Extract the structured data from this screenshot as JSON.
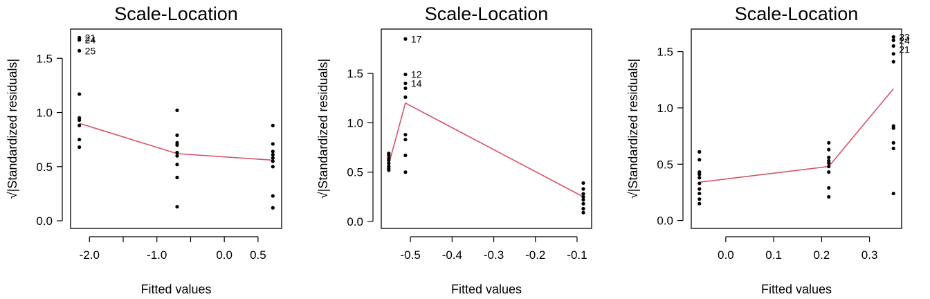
{
  "chart_data": [
    {
      "type": "scatter",
      "title": "Scale-Location",
      "xlabel": "Fitted values",
      "ylabel": "√|Standardized residuals|",
      "xlim": [
        -2.28,
        0.85
      ],
      "ylim": [
        -0.07,
        1.77
      ],
      "xticks": [
        -2.0,
        -1.5,
        -1.0,
        -0.5,
        0.0,
        0.5
      ],
      "xtick_labels": [
        "-2.0",
        "",
        "-1.0",
        "",
        "0.0",
        "0.5"
      ],
      "yticks": [
        0.0,
        0.5,
        1.0,
        1.5
      ],
      "ytick_labels": [
        "0.0",
        "0.5",
        "1.0",
        "1.5"
      ],
      "points": [
        {
          "x": -2.15,
          "y": 1.69
        },
        {
          "x": -2.15,
          "y": 1.67
        },
        {
          "x": -2.15,
          "y": 1.57
        },
        {
          "x": -2.15,
          "y": 1.17
        },
        {
          "x": -2.15,
          "y": 0.95
        },
        {
          "x": -2.15,
          "y": 0.93
        },
        {
          "x": -2.15,
          "y": 0.88
        },
        {
          "x": -2.15,
          "y": 0.75
        },
        {
          "x": -2.15,
          "y": 0.68
        },
        {
          "x": -0.7,
          "y": 1.02
        },
        {
          "x": -0.7,
          "y": 0.79
        },
        {
          "x": -0.7,
          "y": 0.72
        },
        {
          "x": -0.7,
          "y": 0.7
        },
        {
          "x": -0.7,
          "y": 0.63
        },
        {
          "x": -0.7,
          "y": 0.6
        },
        {
          "x": -0.7,
          "y": 0.52
        },
        {
          "x": -0.7,
          "y": 0.4
        },
        {
          "x": -0.7,
          "y": 0.13
        },
        {
          "x": 0.72,
          "y": 0.88
        },
        {
          "x": 0.72,
          "y": 0.71
        },
        {
          "x": 0.72,
          "y": 0.64
        },
        {
          "x": 0.72,
          "y": 0.61
        },
        {
          "x": 0.72,
          "y": 0.58
        },
        {
          "x": 0.72,
          "y": 0.55
        },
        {
          "x": 0.72,
          "y": 0.5
        },
        {
          "x": 0.72,
          "y": 0.23
        },
        {
          "x": 0.72,
          "y": 0.12
        }
      ],
      "labels": [
        {
          "text": "21",
          "x": -2.15,
          "y": 1.69
        },
        {
          "text": "24",
          "x": -2.15,
          "y": 1.67
        },
        {
          "text": "25",
          "x": -2.15,
          "y": 1.57
        }
      ],
      "smooth": {
        "x": [
          -2.15,
          -0.7,
          0.72
        ],
        "y": [
          0.9,
          0.62,
          0.56
        ]
      },
      "smooth_color": "#d6526a"
    },
    {
      "type": "scatter",
      "title": "Scale-Location",
      "xlabel": "Fitted values",
      "ylabel": "√|Standardized residuals|",
      "xlim": [
        -0.57,
        -0.065
      ],
      "ylim": [
        -0.07,
        1.95
      ],
      "xticks": [
        -0.5,
        -0.4,
        -0.3,
        -0.2,
        -0.1
      ],
      "xtick_labels": [
        "-0.5",
        "-0.4",
        "-0.3",
        "-0.2",
        "-0.1"
      ],
      "yticks": [
        0.0,
        0.5,
        1.0,
        1.5
      ],
      "ytick_labels": [
        "0.0",
        "0.5",
        "1.0",
        "1.5"
      ],
      "points": [
        {
          "x": -0.552,
          "y": 0.69
        },
        {
          "x": -0.552,
          "y": 0.67
        },
        {
          "x": -0.552,
          "y": 0.64
        },
        {
          "x": -0.552,
          "y": 0.62
        },
        {
          "x": -0.552,
          "y": 0.59
        },
        {
          "x": -0.552,
          "y": 0.56
        },
        {
          "x": -0.552,
          "y": 0.54
        },
        {
          "x": -0.552,
          "y": 0.52
        },
        {
          "x": -0.512,
          "y": 1.85
        },
        {
          "x": -0.512,
          "y": 1.49
        },
        {
          "x": -0.512,
          "y": 1.4
        },
        {
          "x": -0.512,
          "y": 1.35
        },
        {
          "x": -0.512,
          "y": 1.26
        },
        {
          "x": -0.512,
          "y": 0.88
        },
        {
          "x": -0.512,
          "y": 0.83
        },
        {
          "x": -0.512,
          "y": 0.67
        },
        {
          "x": -0.512,
          "y": 0.5
        },
        {
          "x": -0.085,
          "y": 0.39
        },
        {
          "x": -0.085,
          "y": 0.33
        },
        {
          "x": -0.085,
          "y": 0.28
        },
        {
          "x": -0.085,
          "y": 0.25
        },
        {
          "x": -0.085,
          "y": 0.22
        },
        {
          "x": -0.085,
          "y": 0.18
        },
        {
          "x": -0.085,
          "y": 0.13
        },
        {
          "x": -0.085,
          "y": 0.09
        }
      ],
      "labels": [
        {
          "text": "17",
          "x": -0.512,
          "y": 1.85
        },
        {
          "text": "12",
          "x": -0.512,
          "y": 1.49
        },
        {
          "text": "14",
          "x": -0.512,
          "y": 1.4
        }
      ],
      "smooth": {
        "x": [
          -0.552,
          -0.512,
          -0.085
        ],
        "y": [
          0.58,
          1.2,
          0.25
        ]
      },
      "smooth_color": "#d6526a"
    },
    {
      "type": "scatter",
      "title": "Scale-Location",
      "xlabel": "Fitted values",
      "ylabel": "√|Standardized residuals|",
      "xlim": [
        -0.072,
        0.367
      ],
      "ylim": [
        -0.07,
        1.7
      ],
      "xticks": [
        0.0,
        0.1,
        0.2,
        0.3
      ],
      "xtick_labels": [
        "0.0",
        "0.1",
        "0.2",
        "0.3"
      ],
      "yticks": [
        0.0,
        0.5,
        1.0,
        1.5
      ],
      "ytick_labels": [
        "0.0",
        "0.5",
        "1.0",
        "1.5"
      ],
      "points": [
        {
          "x": -0.055,
          "y": 0.61
        },
        {
          "x": -0.055,
          "y": 0.54
        },
        {
          "x": -0.055,
          "y": 0.43
        },
        {
          "x": -0.055,
          "y": 0.41
        },
        {
          "x": -0.055,
          "y": 0.38
        },
        {
          "x": -0.055,
          "y": 0.33
        },
        {
          "x": -0.055,
          "y": 0.28
        },
        {
          "x": -0.055,
          "y": 0.24
        },
        {
          "x": -0.055,
          "y": 0.19
        },
        {
          "x": -0.055,
          "y": 0.15
        },
        {
          "x": 0.215,
          "y": 0.69
        },
        {
          "x": 0.215,
          "y": 0.63
        },
        {
          "x": 0.215,
          "y": 0.56
        },
        {
          "x": 0.215,
          "y": 0.53
        },
        {
          "x": 0.215,
          "y": 0.51
        },
        {
          "x": 0.215,
          "y": 0.48
        },
        {
          "x": 0.215,
          "y": 0.43
        },
        {
          "x": 0.215,
          "y": 0.29
        },
        {
          "x": 0.215,
          "y": 0.21
        },
        {
          "x": 0.35,
          "y": 1.63
        },
        {
          "x": 0.35,
          "y": 1.6
        },
        {
          "x": 0.35,
          "y": 1.55
        },
        {
          "x": 0.35,
          "y": 1.48
        },
        {
          "x": 0.35,
          "y": 1.41
        },
        {
          "x": 0.35,
          "y": 0.84
        },
        {
          "x": 0.35,
          "y": 0.82
        },
        {
          "x": 0.35,
          "y": 0.69
        },
        {
          "x": 0.35,
          "y": 0.64
        },
        {
          "x": 0.35,
          "y": 0.24
        }
      ],
      "labels": [
        {
          "text": "23",
          "x": 0.35,
          "y": 1.63
        },
        {
          "text": "24",
          "x": 0.35,
          "y": 1.6
        },
        {
          "text": "21",
          "x": 0.35,
          "y": 1.52
        }
      ],
      "smooth": {
        "x": [
          -0.055,
          0.215,
          0.35
        ],
        "y": [
          0.34,
          0.48,
          1.17
        ]
      },
      "smooth_color": "#d6526a"
    }
  ]
}
